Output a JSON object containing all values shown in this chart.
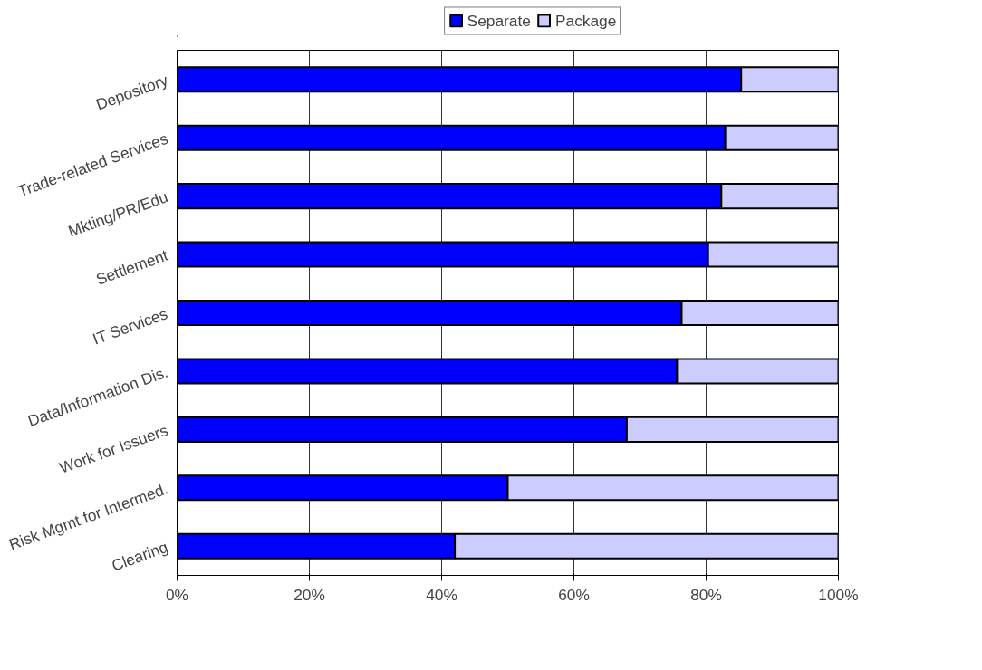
{
  "chart_data": {
    "type": "bar",
    "orientation": "horizontal",
    "stacked": true,
    "categories": [
      "Depository",
      "Trade-related Services",
      "Mkting/PR/Edu",
      "Settlement",
      "IT Services",
      "Data/Information Dis.",
      "Work for Issuers",
      "Risk Mgmt for Intermed.",
      "Clearing"
    ],
    "series": [
      {
        "name": "Separate",
        "color": "#0000ff",
        "values": [
          85.3,
          82.9,
          82.3,
          80.3,
          76.3,
          75.6,
          68,
          50,
          42
        ]
      },
      {
        "name": "Package",
        "color": "#ccccff",
        "values": [
          14.7,
          17.1,
          17.7,
          19.7,
          23.7,
          24.4,
          32,
          50,
          58
        ]
      }
    ],
    "xlim": [
      0,
      100
    ],
    "xticks": [
      {
        "value": 0,
        "label": "0%"
      },
      {
        "value": 20,
        "label": "20%"
      },
      {
        "value": 40,
        "label": "40%"
      },
      {
        "value": 60,
        "label": "60%"
      },
      {
        "value": 80,
        "label": "80%"
      },
      {
        "value": 100,
        "label": "100%"
      }
    ],
    "grid": "x",
    "legend": "top"
  }
}
